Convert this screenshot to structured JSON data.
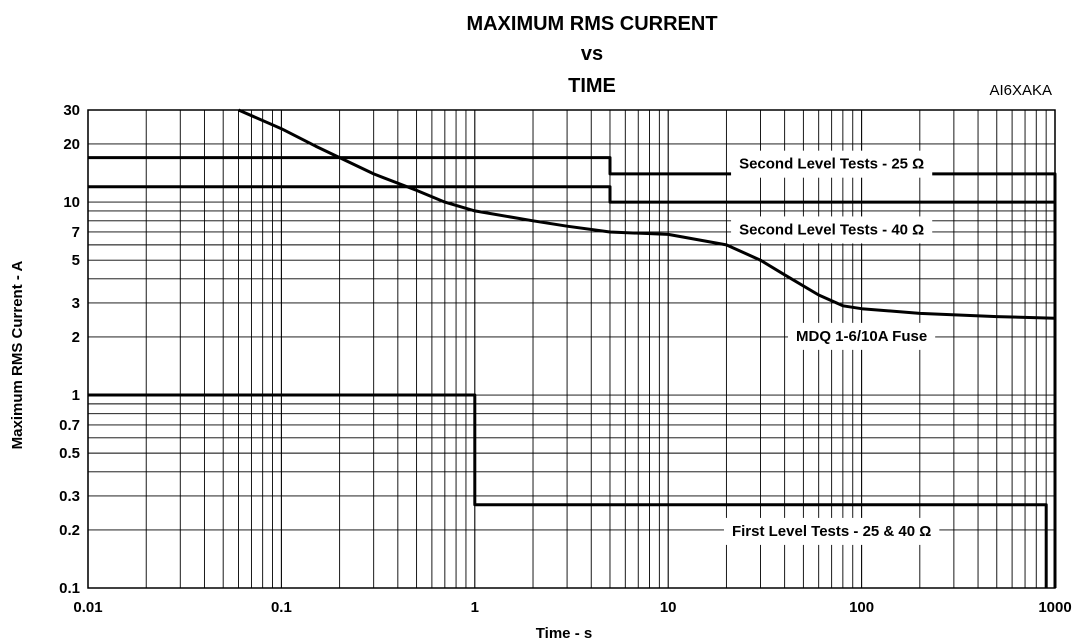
{
  "chart_data": {
    "type": "line",
    "title_lines": [
      "MAXIMUM RMS CURRENT",
      "vs",
      "TIME"
    ],
    "reference_code": "AI6XAKA",
    "xlabel": "Time - s",
    "ylabel": "Maximum RMS Current - A",
    "x_scale": "log",
    "y_scale": "log",
    "xlim": [
      0.01,
      1000
    ],
    "ylim": [
      0.1,
      30
    ],
    "grid": true,
    "x_ticks": [
      {
        "value": 0.01,
        "label": "0.01"
      },
      {
        "value": 0.1,
        "label": "0.1"
      },
      {
        "value": 1,
        "label": "1"
      },
      {
        "value": 10,
        "label": "10"
      },
      {
        "value": 100,
        "label": "100"
      },
      {
        "value": 1000,
        "label": "1000"
      }
    ],
    "y_ticks": [
      {
        "value": 0.1,
        "label": "0.1"
      },
      {
        "value": 0.2,
        "label": "0.2"
      },
      {
        "value": 0.3,
        "label": "0.3"
      },
      {
        "value": 0.5,
        "label": "0.5"
      },
      {
        "value": 0.7,
        "label": "0.7"
      },
      {
        "value": 1,
        "label": "1"
      },
      {
        "value": 2,
        "label": "2"
      },
      {
        "value": 3,
        "label": "3"
      },
      {
        "value": 5,
        "label": "5"
      },
      {
        "value": 7,
        "label": "7"
      },
      {
        "value": 10,
        "label": "10"
      },
      {
        "value": 20,
        "label": "20"
      },
      {
        "value": 30,
        "label": "30"
      }
    ],
    "series": [
      {
        "name": "Second Level Tests - 25 Ω",
        "x": [
          0.01,
          5,
          5,
          1000,
          1000
        ],
        "y": [
          17,
          17,
          14,
          14,
          0.1
        ]
      },
      {
        "name": "Second Level Tests - 40 Ω",
        "x": [
          0.01,
          5,
          5,
          1000
        ],
        "y": [
          12,
          12,
          10,
          10
        ]
      },
      {
        "name": "MDQ 1-6/10A Fuse",
        "x": [
          0.06,
          0.1,
          0.15,
          0.2,
          0.3,
          0.5,
          0.7,
          1,
          2,
          3,
          5,
          10,
          20,
          30,
          40,
          60,
          80,
          100,
          200,
          500,
          1000
        ],
        "y": [
          30,
          24,
          19.5,
          17,
          14,
          11.5,
          10,
          9,
          8,
          7.5,
          7,
          6.8,
          6,
          5,
          4.2,
          3.3,
          2.9,
          2.8,
          2.65,
          2.55,
          2.5
        ]
      },
      {
        "name": "First Level Tests - 25 & 40 Ω",
        "x": [
          0.01,
          1,
          1,
          900,
          900
        ],
        "y": [
          1,
          1,
          0.27,
          0.27,
          0.1
        ]
      }
    ],
    "annotations": [
      {
        "text": "Second Level Tests - 25 Ω",
        "x": 70,
        "y": 16
      },
      {
        "text": "Second Level Tests - 40 Ω",
        "x": 70,
        "y": 7.3
      },
      {
        "text": "MDQ 1-6/10A Fuse",
        "x": 100,
        "y": 2.05
      },
      {
        "text": "First Level Tests - 25 & 40 Ω",
        "x": 70,
        "y": 0.2
      }
    ]
  }
}
